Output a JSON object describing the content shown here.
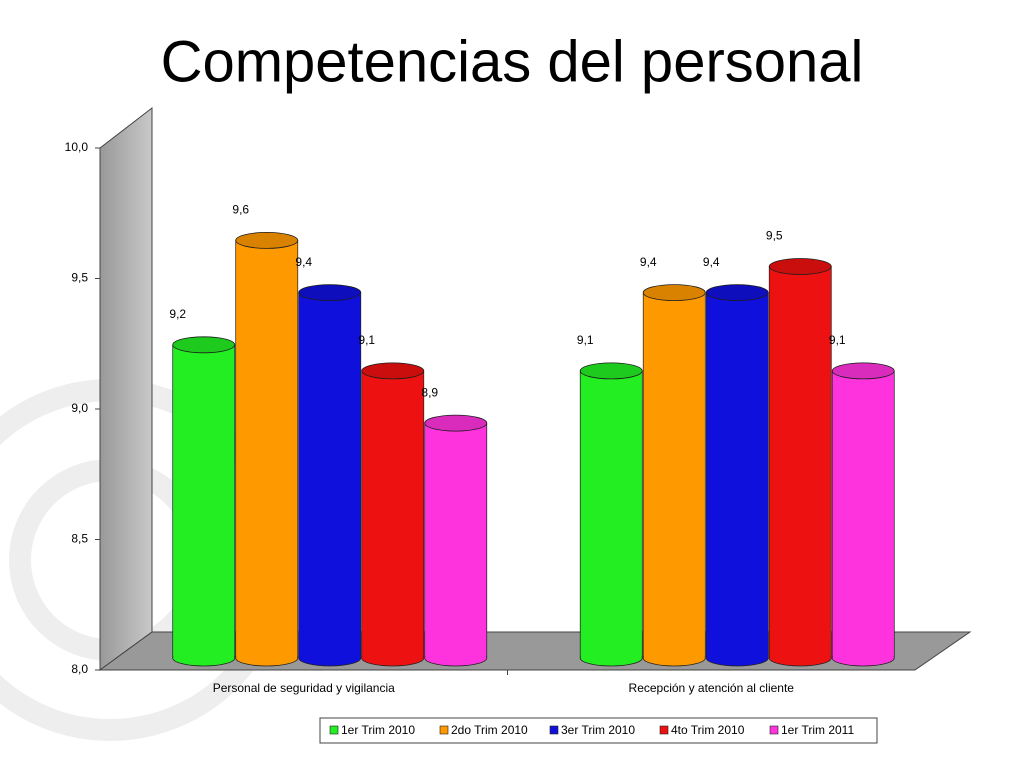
{
  "chart_data": {
    "type": "bar",
    "title": "Competencias del personal",
    "categories": [
      "Personal de seguridad y vigilancia",
      "Recepción y atención al cliente"
    ],
    "series": [
      {
        "name": "1er Trim 2010",
        "color": "#22ee22",
        "values": [
          9.2,
          9.1
        ],
        "value_labels": [
          "9,2",
          "9,1"
        ]
      },
      {
        "name": "2do Trim 2010",
        "color": "#ff9900",
        "values": [
          9.6,
          9.4
        ],
        "value_labels": [
          "9,6",
          "9,4"
        ]
      },
      {
        "name": "3er Trim 2010",
        "color": "#1010dd",
        "values": [
          9.4,
          9.4
        ],
        "value_labels": [
          "9,4",
          "9,4"
        ]
      },
      {
        "name": "4to Trim 2010",
        "color": "#ee1111",
        "values": [
          9.1,
          9.5
        ],
        "value_labels": [
          "9,1",
          "9,5"
        ]
      },
      {
        "name": "1er Trim 2011",
        "color": "#ff33dd",
        "values": [
          8.9,
          9.1
        ],
        "value_labels": [
          "8,9",
          "9,1"
        ]
      }
    ],
    "ylim": [
      8,
      10
    ],
    "yticks": [
      {
        "value": 8,
        "label": "8,0"
      },
      {
        "value": 8.5,
        "label": "8,5"
      },
      {
        "value": 9,
        "label": "9,0"
      },
      {
        "value": 9.5,
        "label": "9,5"
      },
      {
        "value": 10,
        "label": "10,0"
      }
    ],
    "legend": "bottom"
  }
}
